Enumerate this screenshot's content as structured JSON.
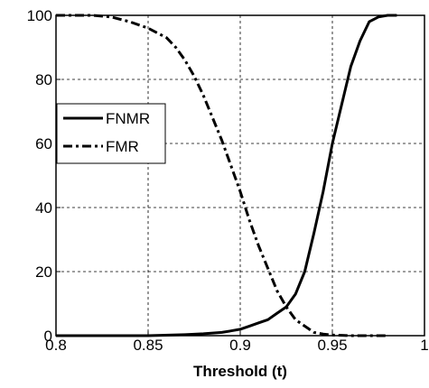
{
  "chart_data": {
    "type": "line",
    "title": "",
    "xlabel": "Threshold (t)",
    "ylabel": "",
    "xlim": [
      0.8,
      1.0
    ],
    "ylim": [
      0,
      100
    ],
    "x_ticks": [
      "0.8",
      "0.85",
      "0.9",
      "0.95",
      "1"
    ],
    "y_ticks": [
      "0",
      "20",
      "40",
      "60",
      "80",
      "100"
    ],
    "grid": true,
    "legend_position": "left",
    "series": [
      {
        "name": "FNMR",
        "style": "solid",
        "color": "#000000",
        "x": [
          0.8,
          0.85,
          0.87,
          0.88,
          0.89,
          0.895,
          0.9,
          0.905,
          0.91,
          0.915,
          0.92,
          0.925,
          0.93,
          0.935,
          0.94,
          0.945,
          0.95,
          0.955,
          0.96,
          0.965,
          0.97,
          0.975,
          0.98,
          0.985
        ],
        "y": [
          0,
          0,
          0.3,
          0.6,
          1,
          1.5,
          2,
          3,
          4,
          5,
          7,
          9,
          13,
          20,
          32,
          45,
          60,
          72,
          84,
          92,
          98,
          99.5,
          100,
          100
        ]
      },
      {
        "name": "FMR",
        "style": "dash-dot",
        "color": "#000000",
        "x": [
          0.8,
          0.82,
          0.83,
          0.84,
          0.85,
          0.86,
          0.865,
          0.87,
          0.875,
          0.88,
          0.885,
          0.89,
          0.895,
          0.9,
          0.905,
          0.91,
          0.915,
          0.92,
          0.925,
          0.93,
          0.935,
          0.94,
          0.945,
          0.95,
          0.96,
          0.97,
          0.98
        ],
        "y": [
          100,
          100,
          99.5,
          98,
          96,
          93,
          90,
          86,
          81,
          75,
          68,
          61,
          53,
          45,
          36,
          28,
          21,
          14,
          9,
          5,
          3,
          1,
          0.5,
          0.2,
          0,
          0,
          0
        ]
      }
    ]
  }
}
